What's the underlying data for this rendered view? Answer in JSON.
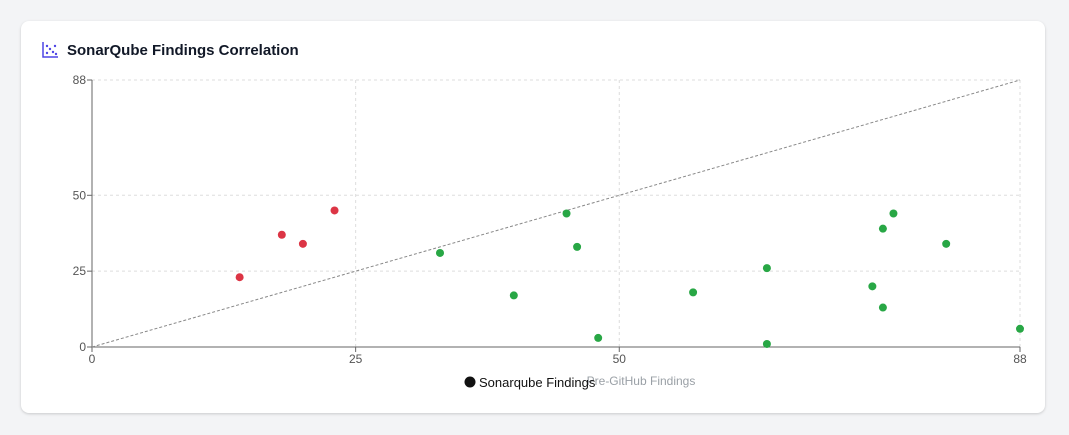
{
  "card": {
    "title": "SonarQube Findings Correlation",
    "icon": "scatter-chart-icon"
  },
  "colors": {
    "above_diagonal": "#dc3545",
    "below_diagonal": "#28a745",
    "icon": "#4f46e5",
    "grid": "#dddddd",
    "diagonal": "#888888"
  },
  "chart_data": {
    "type": "scatter",
    "xlabel": "Pre-GitHub Findings",
    "ylabel": "",
    "xlim": [
      0,
      88
    ],
    "ylim": [
      0,
      88
    ],
    "xticks": [
      0,
      25,
      50,
      88
    ],
    "yticks": [
      0,
      25,
      50,
      88
    ],
    "grid": true,
    "reference_line": "y = x",
    "legend": {
      "label": "Sonarqube Findings",
      "position": "bottom-center"
    },
    "series": [
      {
        "name": "Sonarqube Findings",
        "points": [
          {
            "x": 14,
            "y": 23
          },
          {
            "x": 18,
            "y": 37
          },
          {
            "x": 20,
            "y": 34
          },
          {
            "x": 23,
            "y": 45
          },
          {
            "x": 33,
            "y": 31
          },
          {
            "x": 40,
            "y": 17
          },
          {
            "x": 45,
            "y": 44
          },
          {
            "x": 46,
            "y": 33
          },
          {
            "x": 48,
            "y": 3
          },
          {
            "x": 57,
            "y": 18
          },
          {
            "x": 64,
            "y": 26
          },
          {
            "x": 64,
            "y": 1
          },
          {
            "x": 74,
            "y": 20
          },
          {
            "x": 75,
            "y": 39
          },
          {
            "x": 75,
            "y": 13
          },
          {
            "x": 76,
            "y": 44
          },
          {
            "x": 81,
            "y": 34
          },
          {
            "x": 88,
            "y": 6
          }
        ]
      }
    ]
  }
}
